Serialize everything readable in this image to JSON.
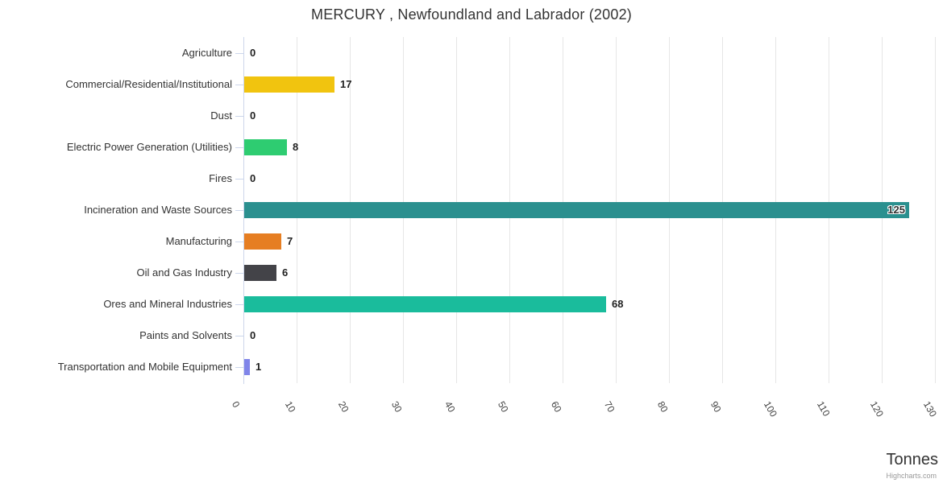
{
  "title": "MERCURY , Newfoundland and Labrador (2002)",
  "value_axis": {
    "title": "Tonnes",
    "ticks": [
      0,
      10,
      20,
      30,
      40,
      50,
      60,
      70,
      80,
      90,
      100,
      110,
      120,
      130
    ]
  },
  "credits": "Highcharts.com",
  "colors": {
    "axis_line": "#ccd6eb",
    "gridline": "#e6e6e6",
    "title_text": "#333333",
    "category_text": "#333333",
    "tick_label_text": "#444444",
    "credits_text": "#999999"
  },
  "chart_data": {
    "type": "bar",
    "orientation": "horizontal",
    "title": "MERCURY , Newfoundland and Labrador (2002)",
    "xlabel": "Tonnes",
    "xlim": [
      0,
      130
    ],
    "tick_interval": 10,
    "grid": true,
    "legend": false,
    "categories": [
      "Agriculture",
      "Commercial/Residential/Institutional",
      "Dust",
      "Electric Power Generation (Utilities)",
      "Fires",
      "Incineration and Waste Sources",
      "Manufacturing",
      "Oil and Gas Industry",
      "Ores and Mineral Industries",
      "Paints and Solvents",
      "Transportation and Mobile Equipment"
    ],
    "values": [
      0,
      17,
      0,
      8,
      0,
      125,
      7,
      6,
      68,
      0,
      1
    ],
    "bar_colors": [
      null,
      "#f1c40f",
      null,
      "#2ecc71",
      null,
      "#2b908f",
      "#e67e22",
      "#434348",
      "#1abc9c",
      null,
      "#8085e9"
    ],
    "unit": "tonnes"
  }
}
